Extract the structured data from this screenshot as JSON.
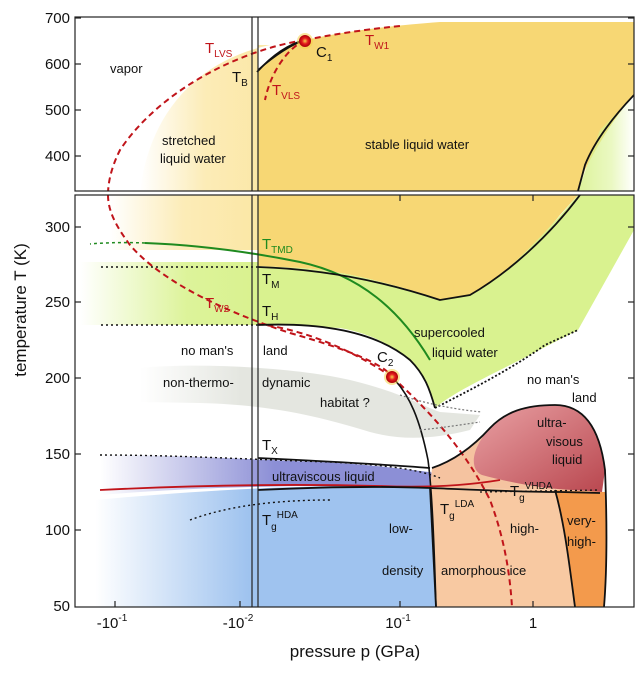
{
  "axes": {
    "x_title": "pressure p (GPa)",
    "y_title": "temperature T (K)",
    "x_ticks": [
      "-10",
      "-10",
      "10",
      "1"
    ],
    "x_tick_exponents": [
      "-1",
      "-2",
      "-1",
      ""
    ],
    "y_ticks_upper": [
      "700",
      "600",
      "500",
      "400"
    ],
    "y_ticks_lower": [
      "300",
      "250",
      "200",
      "150",
      "100",
      "50"
    ]
  },
  "regions": {
    "vapor": "vapor",
    "stretched_line1": "stretched",
    "stretched_line2": "liquid  water",
    "stable": "stable  liquid  water",
    "supercooled_line1": "supercooled",
    "supercooled_line2": "liquid water",
    "nomans_left_a": "no  man's",
    "nomans_left_b": "land",
    "nomans_right_a": "no man's",
    "nomans_right_b": "land",
    "nonthermo_a": "non-thermo-",
    "nonthermo_b": "dynamic",
    "nonthermo_c": "habitat ?",
    "ultraviscous_liquid": "ultraviscous  liquid",
    "ultravisous_a": "ultra-",
    "ultravisous_b": "visous",
    "ultravisous_c": "liquid",
    "low": "low-",
    "density": "density",
    "amorphous_ice": "amorphous ice",
    "high": "high-",
    "very_high": "very-",
    "very_high_b": "high-"
  },
  "lines": {
    "T_LVS": {
      "main": "T",
      "sub": "LVS"
    },
    "T_W1": {
      "main": "T",
      "sub": "W1"
    },
    "T_B": {
      "main": "T",
      "sub": "B"
    },
    "T_VLS": {
      "main": "T",
      "sub": "VLS"
    },
    "T_TMD": {
      "main": "T",
      "sub": "TMD"
    },
    "T_M": {
      "main": "T",
      "sub": "M"
    },
    "T_W2": {
      "main": "T",
      "sub": "W2"
    },
    "T_H": {
      "main": "T",
      "sub": "H"
    },
    "T_X": {
      "main": "T",
      "sub": "X"
    },
    "Tg_HDA": {
      "main": "T",
      "sub": "g",
      "sup": "HDA"
    },
    "Tg_LDA": {
      "main": "T",
      "sub": "g",
      "sup": "LDA"
    },
    "Tg_VHDA": {
      "main": "T",
      "sub": "g",
      "sup": "VHDA"
    }
  },
  "critical_points": {
    "C1": {
      "main": "C",
      "sub": "1"
    },
    "C2": {
      "main": "C",
      "sub": "2"
    }
  },
  "colors": {
    "stable_yellow": "#f7d774",
    "supercooled_green": "#d9f28f",
    "nonthermo_grey": "#e4e6e0",
    "ultraviscous_blue": "#8c8fd6",
    "lda_blue": "#9fc3ef",
    "hda_peach": "#f8c9a2",
    "vhda_orange": "#f39a4c",
    "ultravisous_red": "#c9666c",
    "red_line": "#c0141a",
    "green_line": "#1f8a1f",
    "critical_fill": "#e3181c",
    "critical_glow": "#f6d24a"
  }
}
